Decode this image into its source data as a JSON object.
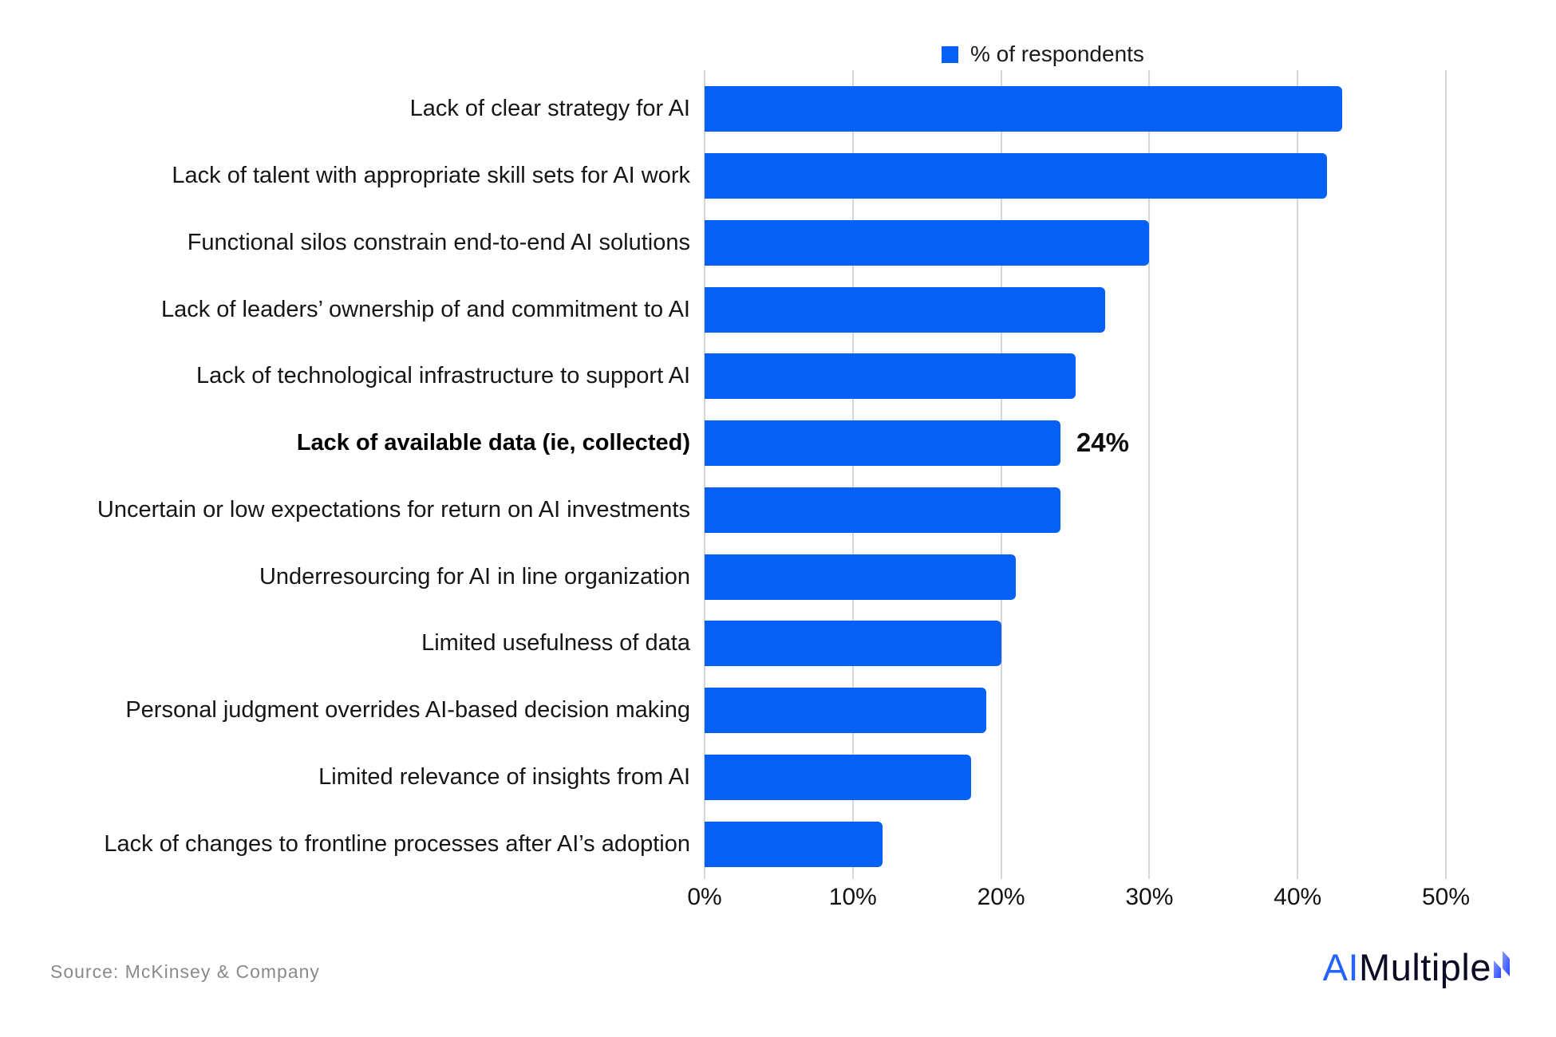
{
  "legend": {
    "label": "% of respondents",
    "swatch_color": "#0561F5",
    "swatch_icon": "legend-square"
  },
  "chart_data": {
    "type": "bar",
    "orientation": "horizontal",
    "title": "",
    "xlabel": "",
    "ylabel": "",
    "series_name": "% of respondents",
    "categories": [
      "Lack of clear strategy for AI",
      "Lack of talent with appropriate skill sets for AI work",
      "Functional silos constrain end-to-end AI solutions",
      "Lack of leaders’ ownership of and commitment to AI",
      "Lack of technological infrastructure to support AI",
      "Lack of available data (ie, collected)",
      "Uncertain or low expectations for return on AI investments",
      "Underresourcing for AI in line organization",
      "Limited usefulness of data",
      "Personal judgment overrides AI-based decision making",
      "Limited relevance of insights from AI",
      "Lack of changes to frontline processes after AI’s adoption"
    ],
    "values": [
      43,
      42,
      30,
      27,
      25,
      24,
      24,
      21,
      20,
      19,
      18,
      12
    ],
    "highlight": {
      "index": 5,
      "value_label": "24%",
      "bold_category": true
    },
    "bar_color": "#0561F5",
    "xlim": [
      0,
      50
    ],
    "x_tick_values": [
      0,
      10,
      20,
      30,
      40,
      50
    ],
    "x_tick_labels": [
      "0%",
      "10%",
      "20%",
      "30%",
      "40%",
      "50%"
    ],
    "grid": true,
    "gridline_color": "#d6d6d6",
    "legend_position": "top"
  },
  "footer": {
    "source": "Source: McKinsey & Company"
  },
  "logo": {
    "part1": "AI",
    "part2": "Multiple",
    "part1_color": "#2563FF",
    "part2_color": "#0b0b26",
    "bolt_icon": "bolt"
  }
}
